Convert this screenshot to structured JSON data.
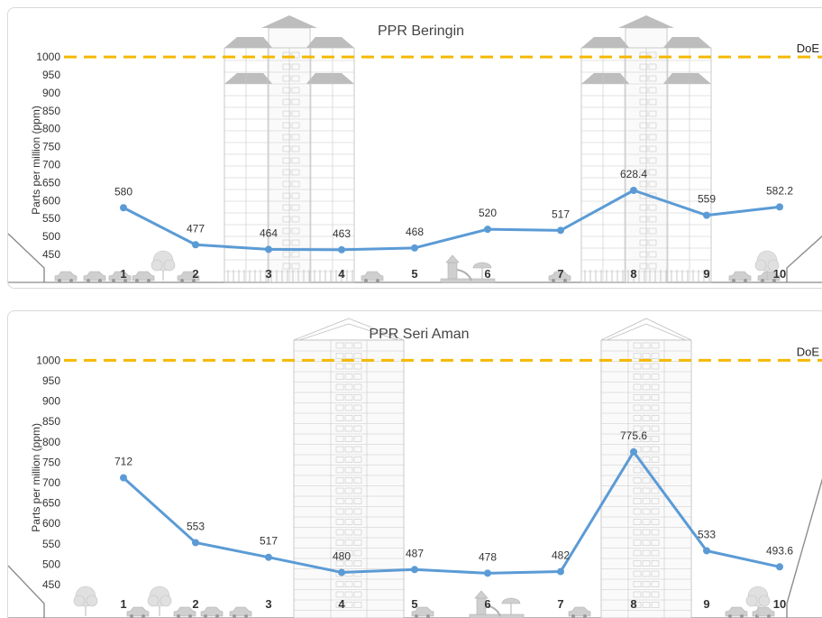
{
  "chart_data": [
    {
      "type": "line",
      "title": "PPR Beringin",
      "xlabel": "",
      "ylabel": "Parts per million (ppm)",
      "categories": [
        "1",
        "2",
        "3",
        "4",
        "5",
        "6",
        "7",
        "8",
        "9",
        "10"
      ],
      "values": [
        580,
        477,
        464,
        463,
        468,
        520,
        517,
        628.4,
        559,
        582.2
      ],
      "data_labels": [
        "580",
        "477",
        "464",
        "463",
        "468",
        "520",
        "517",
        "628.4",
        "559",
        "582.2"
      ],
      "yticks": [
        "450",
        "500",
        "550",
        "600",
        "650",
        "700",
        "750",
        "800",
        "850",
        "900",
        "950",
        "1000"
      ],
      "ylim": [
        425,
        1000
      ],
      "reference_line": {
        "label": "DoE",
        "value": 1000,
        "color": "#f5b800"
      },
      "series_color": "#5b9bd5",
      "grid": false
    },
    {
      "type": "line",
      "title": "PPR Seri Aman",
      "xlabel": "",
      "ylabel": "Parts per million (ppm)",
      "categories": [
        "1",
        "2",
        "3",
        "4",
        "5",
        "6",
        "7",
        "8",
        "9",
        "10"
      ],
      "values": [
        712,
        553,
        517,
        480,
        487,
        478,
        482,
        775.6,
        533,
        493.6
      ],
      "data_labels": [
        "712",
        "553",
        "517",
        "480",
        "487",
        "478",
        "482",
        "775.6",
        "533",
        "493.6"
      ],
      "yticks": [
        "450",
        "500",
        "550",
        "600",
        "650",
        "700",
        "750",
        "800",
        "850",
        "900",
        "950",
        "1000"
      ],
      "ylim": [
        425,
        1000
      ],
      "reference_line": {
        "label": "DoE",
        "value": 1000,
        "color": "#f5b800"
      },
      "series_color": "#5b9bd5",
      "grid": false
    }
  ]
}
